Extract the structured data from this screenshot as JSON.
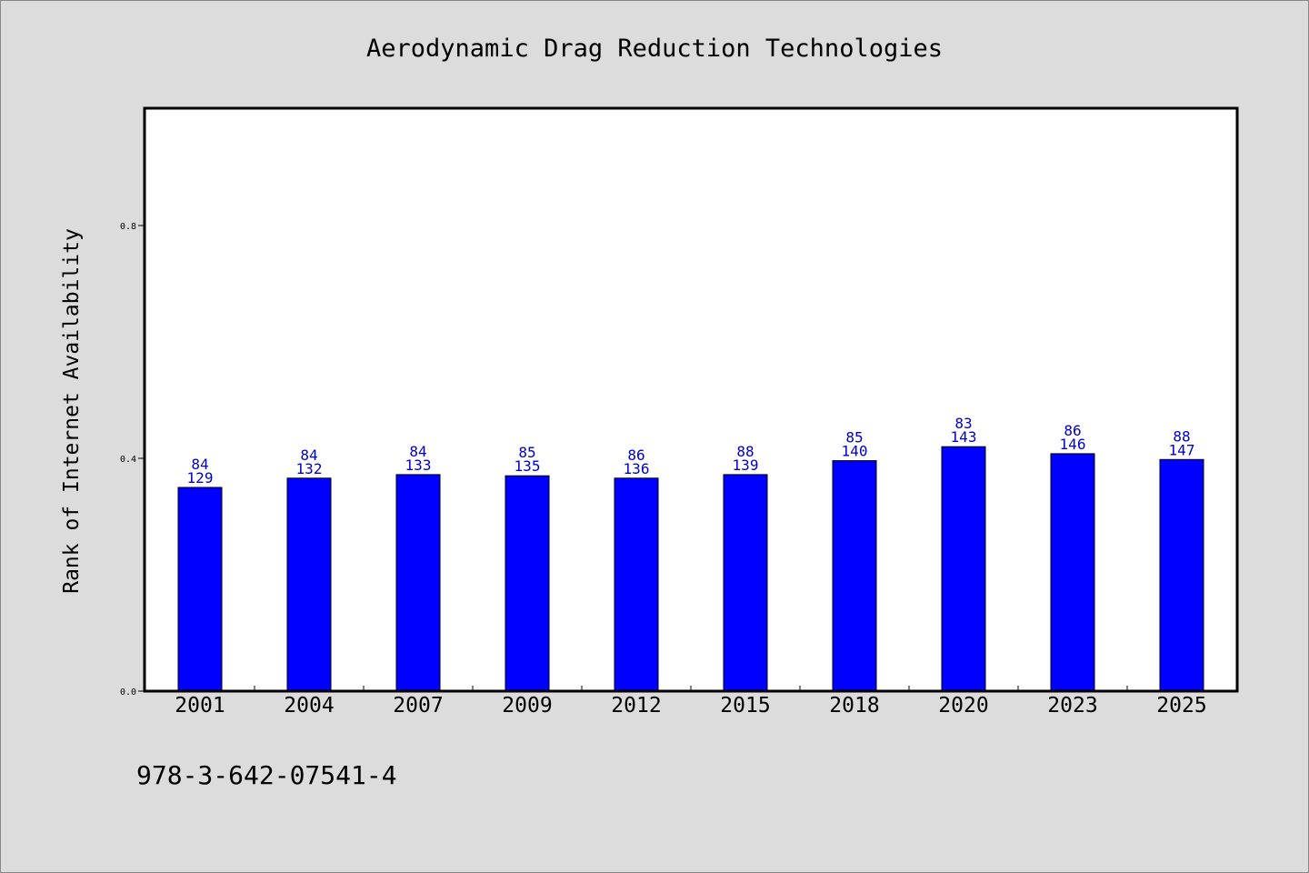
{
  "chart_data": {
    "type": "bar",
    "title": "Aerodynamic Drag Reduction Technologies",
    "xlabel": "",
    "ylabel": "Rank of Internet Availability",
    "categories": [
      "2001",
      "2004",
      "2007",
      "2009",
      "2012",
      "2015",
      "2018",
      "2020",
      "2023",
      "2025"
    ],
    "values": [
      0.35,
      0.366,
      0.372,
      0.37,
      0.366,
      0.372,
      0.396,
      0.42,
      0.408,
      0.398
    ],
    "labels_top": [
      "84",
      "84",
      "84",
      "85",
      "86",
      "88",
      "85",
      "83",
      "86",
      "88"
    ],
    "labels_bottom": [
      "129",
      "132",
      "133",
      "135",
      "136",
      "139",
      "140",
      "143",
      "146",
      "147"
    ],
    "ylim": [
      0,
      1.0
    ],
    "yticks": [
      0.0,
      0.4,
      0.8
    ],
    "ytick_labels": [
      "0.0",
      "0.4",
      "0.8"
    ],
    "grid": false,
    "legend": "none",
    "colors": {
      "background": "#dcdcdc",
      "plot_background": "#ffffff",
      "bar": "#0000ff",
      "bar_edge": "#000000",
      "label_text": "#0000cc"
    }
  },
  "footer": {
    "isbn": "978-3-642-07541-4"
  }
}
